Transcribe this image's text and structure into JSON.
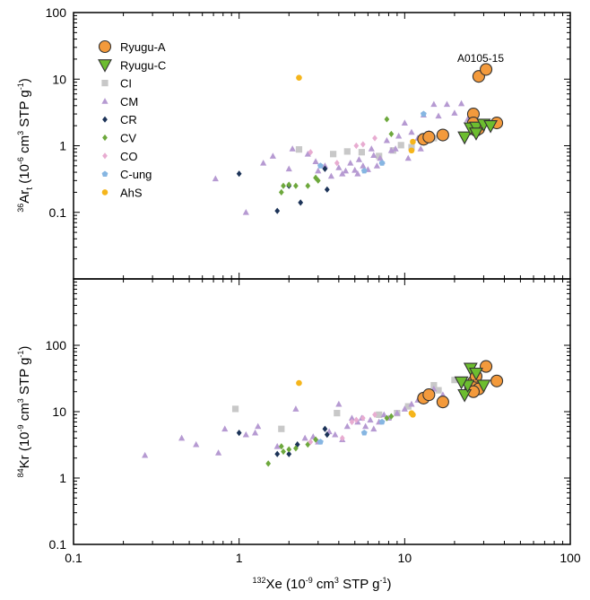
{
  "chart_data": [
    {
      "type": "scatter",
      "title": "",
      "xlabel": "132Xe (10-9 cm3 STP g-1)",
      "xlabel_parts": {
        "sup": "132",
        "main": "Xe (10",
        "exp": "-9",
        "mid": " cm",
        "exp2": "3",
        "tail": " STP g",
        "exp3": "-1",
        "end": ")"
      },
      "ylabel": "36Art (10-6 cm3 STP g-1)",
      "ylabel_parts": {
        "sup": "36",
        "main": "Ar",
        "sub": "t",
        "unit": " (10",
        "exp": "-6",
        "mid": " cm",
        "exp2": "3",
        "tail": " STP g",
        "exp3": "-1",
        "end": ")"
      },
      "xscale": "log",
      "yscale": "log",
      "xlim": [
        0.1,
        100
      ],
      "ylim": [
        0.01,
        100
      ],
      "x_ticks": [
        "0.1",
        "1",
        "10",
        "100"
      ],
      "y_ticks": [
        "0.1",
        "1",
        "10",
        "100"
      ],
      "legend": {
        "position": "top-left",
        "entries": [
          "Ryugu-A",
          "Ryugu-C",
          "CI",
          "CM",
          "CR",
          "CV",
          "CO",
          "C-ung",
          "AhS"
        ]
      },
      "annotations": [
        {
          "text": "A0105-15",
          "x": 30,
          "y": 22
        }
      ],
      "series": [
        {
          "name": "Ryugu-A",
          "marker": "circle",
          "color": "#f39a3c",
          "points": [
            [
              28,
              11
            ],
            [
              31,
              14
            ],
            [
              13,
              1.25
            ],
            [
              14,
              1.35
            ],
            [
              17,
              1.45
            ],
            [
              26,
              3
            ],
            [
              26,
              2.2
            ],
            [
              27,
              1.7
            ],
            [
              28,
              1.8
            ],
            [
              36,
              2.2
            ]
          ]
        },
        {
          "name": "Ryugu-C",
          "marker": "triangle-down",
          "color": "#6cbd2f",
          "points": [
            [
              23,
              1.35
            ],
            [
              25,
              1.85
            ],
            [
              27,
              1.9
            ],
            [
              30,
              2.1
            ],
            [
              33,
              2
            ],
            [
              27,
              1.55
            ]
          ]
        },
        {
          "name": "CI",
          "marker": "square",
          "color": "#c8c8c8",
          "points": [
            [
              2.3,
              0.88
            ],
            [
              3.7,
              0.75
            ],
            [
              4.5,
              0.82
            ],
            [
              5.5,
              0.8
            ],
            [
              7,
              0.7
            ],
            [
              9.5,
              1.02
            ],
            [
              11,
              0.95
            ],
            [
              15,
              1.3
            ],
            [
              17,
              1.5
            ],
            [
              8.5,
              0.85
            ]
          ]
        },
        {
          "name": "CM",
          "marker": "triangle-up",
          "color": "#b69ad2",
          "points": [
            [
              0.72,
              0.32
            ],
            [
              1.1,
              0.1
            ],
            [
              1.4,
              0.55
            ],
            [
              1.6,
              0.7
            ],
            [
              2.0,
              0.45
            ],
            [
              2.1,
              0.9
            ],
            [
              2.6,
              0.75
            ],
            [
              2.9,
              0.58
            ],
            [
              3.3,
              0.5
            ],
            [
              3.6,
              0.35
            ],
            [
              4.0,
              0.47
            ],
            [
              4.4,
              0.42
            ],
            [
              4.7,
              0.55
            ],
            [
              5.0,
              0.43
            ],
            [
              5.3,
              0.62
            ],
            [
              5.6,
              0.5
            ],
            [
              6.0,
              0.44
            ],
            [
              6.3,
              0.9
            ],
            [
              6.8,
              0.5
            ],
            [
              7.3,
              0.58
            ],
            [
              7.8,
              1.2
            ],
            [
              8.3,
              0.85
            ],
            [
              8.8,
              0.9
            ],
            [
              9.2,
              1.4
            ],
            [
              10,
              2.2
            ],
            [
              10.5,
              0.65
            ],
            [
              11,
              1.6
            ],
            [
              12,
              1.3
            ],
            [
              13,
              2.9
            ],
            [
              14,
              1.55
            ],
            [
              15,
              4.2
            ],
            [
              16,
              2.8
            ],
            [
              18,
              4.2
            ],
            [
              20,
              3.1
            ],
            [
              22,
              4.3
            ],
            [
              24,
              2.5
            ],
            [
              4.2,
              0.38
            ],
            [
              5.2,
              0.38
            ],
            [
              6.5,
              0.72
            ],
            [
              3.0,
              0.42
            ],
            [
              7.1,
              0.65
            ],
            [
              12.5,
              0.9
            ]
          ]
        },
        {
          "name": "CR",
          "marker": "diamond",
          "color": "#1c3358",
          "points": [
            [
              1.0,
              0.38
            ],
            [
              1.7,
              0.105
            ],
            [
              2.0,
              0.25
            ],
            [
              2.35,
              0.14
            ],
            [
              3.3,
              0.45
            ],
            [
              3.4,
              0.22
            ]
          ]
        },
        {
          "name": "CV",
          "marker": "diamond",
          "color": "#6da83c",
          "points": [
            [
              1.8,
              0.2
            ],
            [
              1.85,
              0.25
            ],
            [
              2.0,
              0.26
            ],
            [
              2.2,
              0.25
            ],
            [
              2.6,
              0.25
            ],
            [
              2.9,
              0.33
            ],
            [
              3.0,
              0.3
            ],
            [
              7.8,
              2.5
            ],
            [
              8.3,
              1.5
            ]
          ]
        },
        {
          "name": "CO",
          "marker": "diamond",
          "color": "#e8acd1",
          "points": [
            [
              2.7,
              0.8
            ],
            [
              3.9,
              0.55
            ],
            [
              5.1,
              1.0
            ],
            [
              5.6,
              1.05
            ],
            [
              6.6,
              1.3
            ]
          ]
        },
        {
          "name": "C-ung",
          "marker": "pentagon",
          "color": "#86b6e2",
          "points": [
            [
              3.1,
              0.5
            ],
            [
              5.7,
              0.42
            ],
            [
              7.3,
              0.55
            ],
            [
              13,
              3.0
            ]
          ]
        },
        {
          "name": "AhS",
          "marker": "circle",
          "color": "#f5b51b",
          "points": [
            [
              2.3,
              10.5
            ],
            [
              11,
              0.85
            ],
            [
              11.2,
              1.15
            ]
          ]
        }
      ]
    },
    {
      "type": "scatter",
      "title": "",
      "xlabel": "132Xe (10-9 cm3 STP g-1)",
      "ylabel": "84Kr (10-9 cm3 STP g-1)",
      "ylabel_parts": {
        "sup": "84",
        "main": "Kr",
        "unit": " (10",
        "exp": "-9",
        "mid": " cm",
        "exp2": "3",
        "tail": " STP g",
        "exp3": "-1",
        "end": ")"
      },
      "xscale": "log",
      "yscale": "log",
      "xlim": [
        0.1,
        100
      ],
      "ylim": [
        0.1,
        1000
      ],
      "x_ticks": [
        "0.1",
        "1",
        "10",
        "100"
      ],
      "y_ticks": [
        "0.1",
        "1",
        "10",
        "100"
      ],
      "series": [
        {
          "name": "Ryugu-A",
          "marker": "circle",
          "color": "#f39a3c",
          "points": [
            [
              31,
              48
            ],
            [
              13,
              16
            ],
            [
              14,
              18
            ],
            [
              17,
              14
            ],
            [
              25,
              23
            ],
            [
              26,
              28
            ],
            [
              27,
              34
            ],
            [
              28,
              22
            ],
            [
              36,
              29
            ],
            [
              26,
              20
            ]
          ]
        },
        {
          "name": "Ryugu-C",
          "marker": "triangle-down",
          "color": "#6cbd2f",
          "points": [
            [
              23,
              18
            ],
            [
              25,
              45
            ],
            [
              24,
              25
            ],
            [
              27,
              38
            ],
            [
              30,
              25
            ],
            [
              22,
              28
            ]
          ]
        },
        {
          "name": "CI",
          "marker": "square",
          "color": "#c8c8c8",
          "points": [
            [
              0.95,
              11
            ],
            [
              1.8,
              5.5
            ],
            [
              3.9,
              9.5
            ],
            [
              7,
              9
            ],
            [
              9,
              9.5
            ],
            [
              10.5,
              12
            ],
            [
              15,
              25
            ],
            [
              16,
              21
            ],
            [
              20,
              30
            ],
            [
              25,
              25
            ],
            [
              27,
              33
            ]
          ]
        },
        {
          "name": "CM",
          "marker": "triangle-up",
          "color": "#b69ad2",
          "points": [
            [
              0.27,
              2.2
            ],
            [
              0.45,
              4
            ],
            [
              0.55,
              3.2
            ],
            [
              0.75,
              2.4
            ],
            [
              0.82,
              5.5
            ],
            [
              1.1,
              4.5
            ],
            [
              1.25,
              4.8
            ],
            [
              1.3,
              6
            ],
            [
              1.7,
              3
            ],
            [
              2.2,
              11
            ],
            [
              2.5,
              4
            ],
            [
              3.0,
              3.5
            ],
            [
              3.5,
              5
            ],
            [
              4.0,
              13
            ],
            [
              4.5,
              6
            ],
            [
              4.8,
              8
            ],
            [
              5.2,
              7
            ],
            [
              5.8,
              6
            ],
            [
              6.5,
              5.5
            ],
            [
              7,
              7
            ],
            [
              7.5,
              9
            ],
            [
              8,
              8
            ],
            [
              9,
              9.5
            ],
            [
              10,
              11
            ],
            [
              11,
              13
            ],
            [
              12,
              15
            ],
            [
              13,
              15
            ],
            [
              15,
              22
            ],
            [
              17,
              18
            ],
            [
              5.5,
              8
            ],
            [
              6.2,
              7.5
            ],
            [
              3.8,
              4.5
            ],
            [
              4.2,
              3.8
            ],
            [
              2.8,
              4.2
            ]
          ]
        },
        {
          "name": "CR",
          "marker": "diamond",
          "color": "#1c3358",
          "points": [
            [
              1.0,
              4.8
            ],
            [
              1.7,
              2.3
            ],
            [
              2.0,
              2.3
            ],
            [
              2.25,
              3.2
            ],
            [
              3.3,
              5.5
            ],
            [
              3.4,
              4.5
            ]
          ]
        },
        {
          "name": "CV",
          "marker": "diamond",
          "color": "#6da83c",
          "points": [
            [
              1.5,
              1.65
            ],
            [
              1.8,
              3
            ],
            [
              1.85,
              2.5
            ],
            [
              2.0,
              2.7
            ],
            [
              2.2,
              2.8
            ],
            [
              2.6,
              3.2
            ],
            [
              2.9,
              3.8
            ],
            [
              7.8,
              8
            ],
            [
              8.3,
              8.5
            ]
          ]
        },
        {
          "name": "CO",
          "marker": "diamond",
          "color": "#e8acd1",
          "points": [
            [
              2.7,
              3.5
            ],
            [
              4.8,
              7
            ],
            [
              5.1,
              7.5
            ],
            [
              5.6,
              8
            ],
            [
              6.6,
              9
            ],
            [
              4.2,
              4
            ]
          ]
        },
        {
          "name": "C-ung",
          "marker": "pentagon",
          "color": "#86b6e2",
          "points": [
            [
              3.1,
              3.5
            ],
            [
              5.7,
              4.8
            ],
            [
              7.3,
              7
            ],
            [
              13,
              15
            ]
          ]
        },
        {
          "name": "AhS",
          "marker": "circle",
          "color": "#f5b51b",
          "points": [
            [
              2.3,
              27
            ],
            [
              11,
              9.5
            ],
            [
              11.2,
              9
            ]
          ]
        }
      ]
    }
  ]
}
